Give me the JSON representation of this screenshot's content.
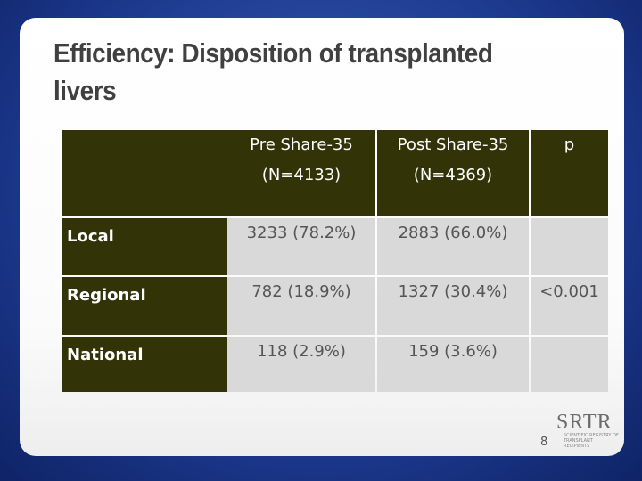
{
  "slide": {
    "title": [
      "Efficiency: Disposition of transplanted",
      "livers"
    ],
    "table": {
      "header": [
        [
          "Pre Share-35",
          "(N=4133)"
        ],
        [
          "Post Share-35",
          "(N=4369)"
        ],
        [
          "p"
        ]
      ],
      "rows": [
        {
          "label": "Local",
          "pre": "3233 (78.2%)",
          "post": "2883 (66.0%)"
        },
        {
          "label": "Regional",
          "pre": "782 (18.9%)",
          "post": "1327 (30.4%)",
          "p": "<0.001"
        },
        {
          "label": "National",
          "pre": "118 (2.9%)",
          "post": "159 (3.6%)"
        }
      ]
    },
    "page_number": "8",
    "logo": {
      "name": "SRTR",
      "tagline": [
        "SCIENTIFIC REGISTRY OF",
        "TRANSPLANT RECIPIENTS"
      ]
    }
  }
}
